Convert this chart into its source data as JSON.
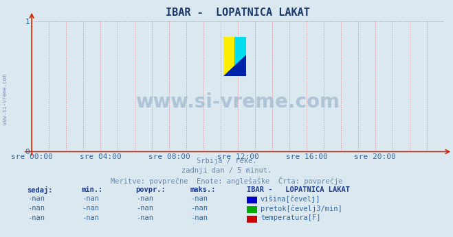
{
  "title": "IBAR -  LOPATNICA LAKAT",
  "title_color": "#1a3a6b",
  "bg_color": "#dce8f0",
  "plot_bg_color": "#dce8f0",
  "grid_color": "#e08080",
  "axis_color": "#cc2200",
  "ylim": [
    0,
    1
  ],
  "yticks": [
    0,
    1
  ],
  "tick_color": "#336699",
  "xtick_labels": [
    "sre 00:00",
    "sre 04:00",
    "sre 08:00",
    "sre 12:00",
    "sre 16:00",
    "sre 20:00"
  ],
  "xtick_positions": [
    0,
    4,
    8,
    12,
    16,
    20
  ],
  "xlim": [
    0,
    24
  ],
  "subtitle_lines": [
    "Srbija / reke.",
    "zadnji dan / 5 minut.",
    "Meritve: povprečne  Enote: anglešaške  Črta: povprečje"
  ],
  "subtitle_color": "#6688aa",
  "watermark_text": "www.si-vreme.com",
  "watermark_color": "#b0c4d8",
  "left_label": "www.si-vreme.com",
  "left_label_color": "#8899bb",
  "table_headers": [
    "sedaj:",
    "min.:",
    "povpr.:",
    "maks.:"
  ],
  "table_header_color": "#1a3a8f",
  "station_label": "IBAR -   LOPATNICA LAKAT",
  "station_label_color": "#1a3a8f",
  "series": [
    {
      "label": "višina[čevelj]",
      "color": "#0000cc"
    },
    {
      "label": "pretok[čevelj3/min]",
      "color": "#00aa00"
    },
    {
      "label": "temperatura[F]",
      "color": "#cc0000"
    }
  ],
  "nan_text": "-nan",
  "nan_color": "#336699",
  "figsize": [
    6.59,
    3.46
  ],
  "dpi": 100
}
